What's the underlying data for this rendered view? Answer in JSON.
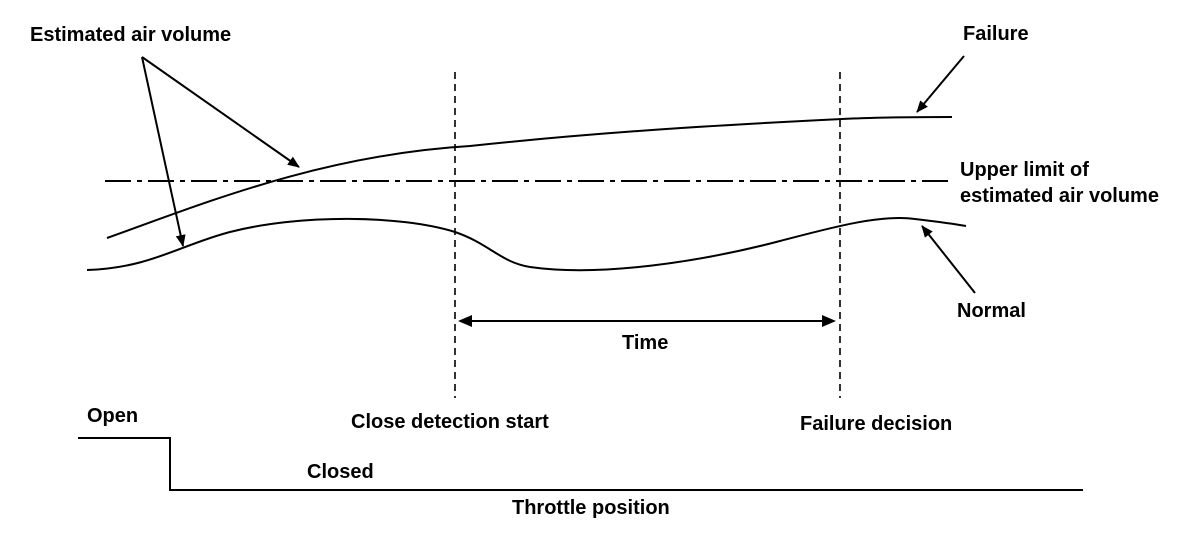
{
  "labels": {
    "estimated_air_volume": "Estimated air volume",
    "failure": "Failure",
    "upper_limit_line1": "Upper limit of",
    "upper_limit_line2": "estimated air volume",
    "normal": "Normal",
    "time": "Time",
    "open": "Open",
    "closed": "Closed",
    "close_detection_start": "Close detection start",
    "failure_decision": "Failure decision",
    "throttle_position": "Throttle position"
  }
}
